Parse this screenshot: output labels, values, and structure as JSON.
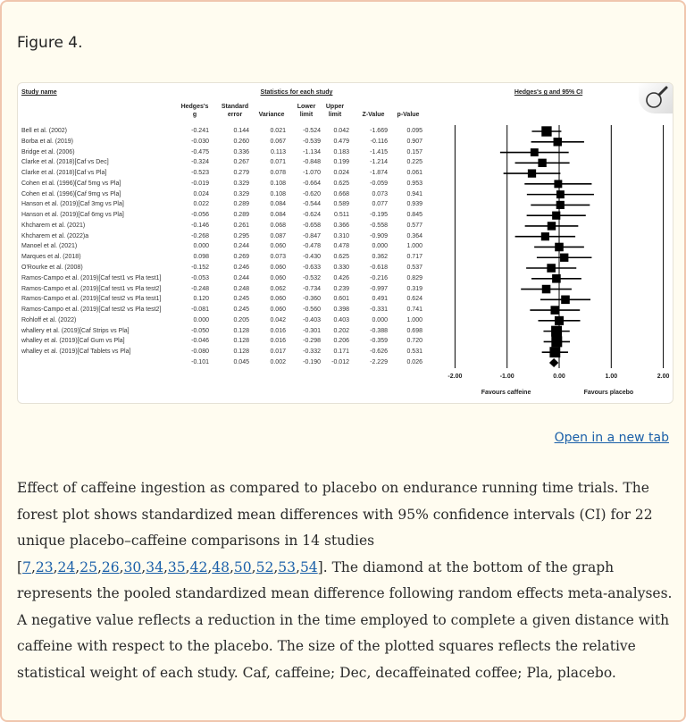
{
  "figure": {
    "title": "Figure 4.",
    "open_link": "Open in a new tab",
    "caption_parts": {
      "before": "Effect of caffeine ingestion as compared to placebo on endurance running time trials. The forest plot shows standardized mean differences with 95% confidence intervals (CI) for 22 unique placebo–caffeine comparisons in 14 studies [",
      "refs": [
        "7",
        "23",
        "24",
        "25",
        "26",
        "30",
        "34",
        "35",
        "42",
        "48",
        "50",
        "52",
        "53",
        "54"
      ],
      "after": "]. The diamond at the bottom of the graph represents the pooled standardized mean difference following random effects meta-analyses. A negative value reflects a reduction in the time employed to complete a given distance with caffeine with respect to the placebo. The size of the plotted squares reflects the relative statistical weight of each study. Caf, caffeine; Dec, decaffeinated coffee; Pla, placebo."
    },
    "zoom_icon": "magnifier-icon"
  },
  "chart_data": {
    "type": "table",
    "plot_type": "forest",
    "headers": {
      "study_name": "Study name",
      "stats_group": "Statistics for each study",
      "plot_group": "Hedges's g and 95% CI",
      "columns": [
        [
          "Hedges's",
          "g"
        ],
        [
          "Standard",
          "error"
        ],
        [
          "",
          "Variance"
        ],
        [
          "Lower",
          "limit"
        ],
        [
          "Upper",
          "limit"
        ],
        [
          "",
          "Z-Value"
        ],
        [
          "",
          "p-Value"
        ]
      ]
    },
    "rows": [
      {
        "study": "Bell et al. (2002)",
        "g": "-0.241",
        "se": "0.144",
        "var": "0.021",
        "lower": "-0.524",
        "upper": "0.042",
        "z": "-1.669",
        "p": "0.095"
      },
      {
        "study": "Borba et al. (2019)",
        "g": "-0.030",
        "se": "0.260",
        "var": "0.067",
        "lower": "-0.539",
        "upper": "0.479",
        "z": "-0.116",
        "p": "0.907"
      },
      {
        "study": "Bridge et al. (2006)",
        "g": "-0.475",
        "se": "0.336",
        "var": "0.113",
        "lower": "-1.134",
        "upper": "0.183",
        "z": "-1.415",
        "p": "0.157"
      },
      {
        "study": "Clarke et al. (2018)[Caf vs Dec]",
        "g": "-0.324",
        "se": "0.267",
        "var": "0.071",
        "lower": "-0.848",
        "upper": "0.199",
        "z": "-1.214",
        "p": "0.225"
      },
      {
        "study": "Clarke et al. (2018)[Caf vs Pla]",
        "g": "-0.523",
        "se": "0.279",
        "var": "0.078",
        "lower": "-1.070",
        "upper": "0.024",
        "z": "-1.874",
        "p": "0.061"
      },
      {
        "study": "Cohen et al. (1996)[Caf 5mg vs Pla]",
        "g": "-0.019",
        "se": "0.329",
        "var": "0.108",
        "lower": "-0.664",
        "upper": "0.625",
        "z": "-0.059",
        "p": "0.953"
      },
      {
        "study": "Cohen et al. (1996)[Caf 9mg vs Pla]",
        "g": "0.024",
        "se": "0.329",
        "var": "0.108",
        "lower": "-0.620",
        "upper": "0.668",
        "z": "0.073",
        "p": "0.941"
      },
      {
        "study": "Hanson et al. (2019)[Caf 3mg vs Pla]",
        "g": "0.022",
        "se": "0.289",
        "var": "0.084",
        "lower": "-0.544",
        "upper": "0.589",
        "z": "0.077",
        "p": "0.939"
      },
      {
        "study": "Hanson et al. (2019)[Caf 6mg vs Pla]",
        "g": "-0.056",
        "se": "0.289",
        "var": "0.084",
        "lower": "-0.624",
        "upper": "0.511",
        "z": "-0.195",
        "p": "0.845"
      },
      {
        "study": "Khcharem et al. (2021)",
        "g": "-0.146",
        "se": "0.261",
        "var": "0.068",
        "lower": "-0.658",
        "upper": "0.366",
        "z": "-0.558",
        "p": "0.577"
      },
      {
        "study": "Khcharem et al. (2022)a",
        "g": "-0.268",
        "se": "0.295",
        "var": "0.087",
        "lower": "-0.847",
        "upper": "0.310",
        "z": "-0.909",
        "p": "0.364"
      },
      {
        "study": "Manoel et al. (2021)",
        "g": "0.000",
        "se": "0.244",
        "var": "0.060",
        "lower": "-0.478",
        "upper": "0.478",
        "z": "0.000",
        "p": "1.000"
      },
      {
        "study": "Marques et al. (2018)",
        "g": "0.098",
        "se": "0.269",
        "var": "0.073",
        "lower": "-0.430",
        "upper": "0.625",
        "z": "0.362",
        "p": "0.717"
      },
      {
        "study": "O'Rourke et al. (2008)",
        "g": "-0.152",
        "se": "0.246",
        "var": "0.060",
        "lower": "-0.633",
        "upper": "0.330",
        "z": "-0.618",
        "p": "0.537"
      },
      {
        "study": "Ramos-Campo et al. (2019)[Caf test1 vs Pla test1]",
        "g": "-0.053",
        "se": "0.244",
        "var": "0.060",
        "lower": "-0.532",
        "upper": "0.426",
        "z": "-0.216",
        "p": "0.829"
      },
      {
        "study": "Ramos-Campo et al. (2019)[Caf test1 vs Pla test2]",
        "g": "-0.248",
        "se": "0.248",
        "var": "0.062",
        "lower": "-0.734",
        "upper": "0.239",
        "z": "-0.997",
        "p": "0.319"
      },
      {
        "study": "Ramos-Campo et al. (2019)[Caf test2 vs Pla test1]",
        "g": "0.120",
        "se": "0.245",
        "var": "0.060",
        "lower": "-0.360",
        "upper": "0.601",
        "z": "0.491",
        "p": "0.624"
      },
      {
        "study": "Ramos-Campo et al. (2019)[Caf test2 vs Pla test2]",
        "g": "-0.081",
        "se": "0.245",
        "var": "0.060",
        "lower": "-0.560",
        "upper": "0.398",
        "z": "-0.331",
        "p": "0.741"
      },
      {
        "study": "Rohloff et al. (2022)",
        "g": "0.000",
        "se": "0.205",
        "var": "0.042",
        "lower": "-0.403",
        "upper": "0.403",
        "z": "0.000",
        "p": "1.000"
      },
      {
        "study": "whallery et al. (2019)[Caf Strips vs Pla]",
        "g": "-0.050",
        "se": "0.128",
        "var": "0.016",
        "lower": "-0.301",
        "upper": "0.202",
        "z": "-0.388",
        "p": "0.698"
      },
      {
        "study": "whalley et al. (2019)[Caf Gum vs Pla]",
        "g": "-0.046",
        "se": "0.128",
        "var": "0.016",
        "lower": "-0.298",
        "upper": "0.206",
        "z": "-0.359",
        "p": "0.720"
      },
      {
        "study": "whalley et al. (2019)[Caf Tablets vs Pla]",
        "g": "-0.080",
        "se": "0.128",
        "var": "0.017",
        "lower": "-0.332",
        "upper": "0.171",
        "z": "-0.626",
        "p": "0.531"
      }
    ],
    "summary": {
      "study": "",
      "g": "-0.101",
      "se": "0.045",
      "var": "0.002",
      "lower": "-0.190",
      "upper": "-0.012",
      "z": "-2.229",
      "p": "0.026"
    },
    "x_ticks": [
      "-2.00",
      "-1.00",
      "0.00",
      "1.00",
      "2.00"
    ],
    "xlim": [
      -2,
      2
    ],
    "favours_left": "Favours caffeine",
    "favours_right": "Favours placebo",
    "marker_color": "#000000"
  }
}
